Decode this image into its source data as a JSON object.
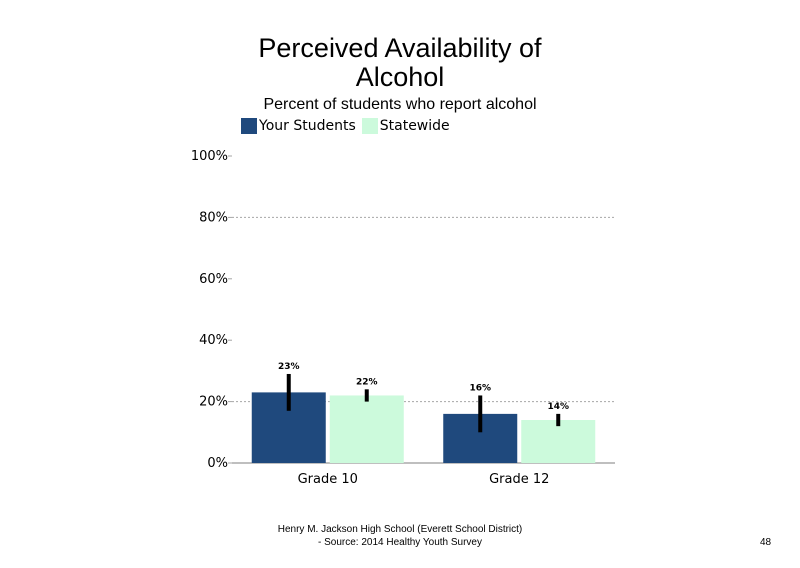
{
  "chart_data": {
    "type": "bar",
    "title": "Perceived Availability of Alcohol",
    "subtitle": "Percent of students  who report alcohol",
    "categories": [
      "Grade 10",
      "Grade 12"
    ],
    "series": [
      {
        "name": "Your Students",
        "color": "#1f497d",
        "values": [
          23,
          16
        ],
        "error_low": [
          17,
          10
        ],
        "error_high": [
          29,
          22
        ],
        "labels": [
          "23%",
          "16%"
        ]
      },
      {
        "name": "Statewide",
        "color": "#ccfadc",
        "values": [
          22,
          14
        ],
        "error_low": [
          20,
          12
        ],
        "error_high": [
          24,
          16
        ],
        "labels": [
          "22%",
          "14%"
        ]
      }
    ],
    "ylim": [
      0,
      100
    ],
    "yticks": [
      0,
      20,
      40,
      60,
      80,
      100
    ],
    "ytick_labels": [
      "0%",
      "20%",
      "40%",
      "60%",
      "80%",
      "100%"
    ],
    "gridlines": [
      20,
      80
    ],
    "grid_color": "#a6a6a6",
    "legend_position": "top-left"
  },
  "title_lines": [
    "Perceived Availability of",
    "Alcohol"
  ],
  "footer": {
    "line1": "Henry M.  Jackson High  School (Everett School District)",
    "line2": "- Source: 2014 Healthy  Youth Survey"
  },
  "page_number": "48"
}
